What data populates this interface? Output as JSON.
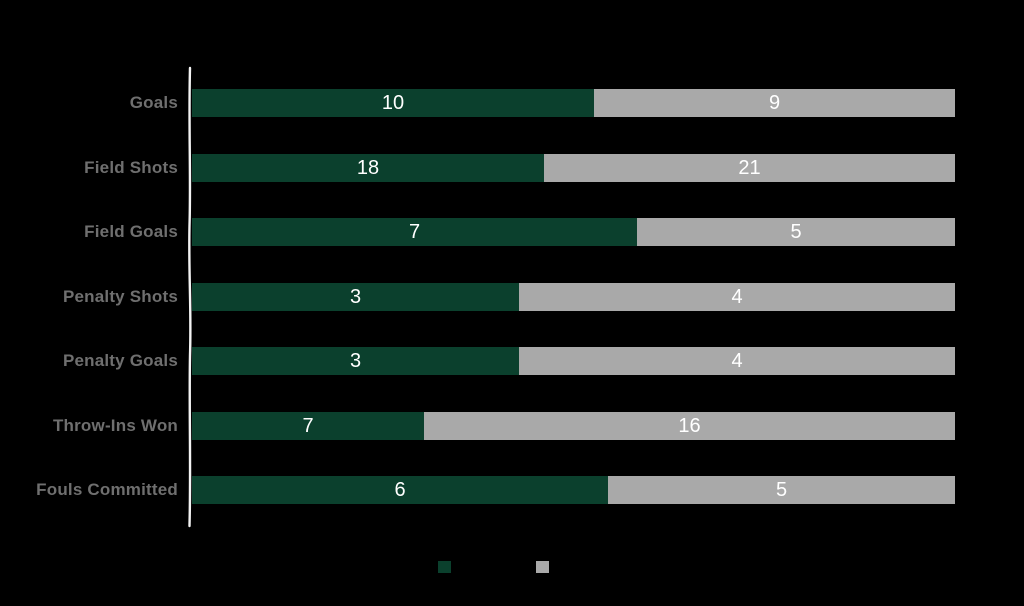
{
  "chart_data": {
    "type": "bar",
    "orientation": "horizontal",
    "stacking": "percent",
    "title": "",
    "xlabel": "",
    "ylabel": "",
    "grid": false,
    "legend_position": "bottom-center",
    "categories": [
      "Goals",
      "Field Shots",
      "Field Goals",
      "Penalty Shots",
      "Penalty Goals",
      "Throw-Ins Won",
      "Fouls Committed"
    ],
    "series": [
      {
        "name": "",
        "color": "#0b402d",
        "values": [
          10,
          18,
          7,
          3,
          3,
          7,
          6
        ]
      },
      {
        "name": "",
        "color": "#a9a9a9",
        "values": [
          9,
          21,
          5,
          4,
          4,
          16,
          5
        ]
      }
    ],
    "value_labels_shown": true
  },
  "legend": {
    "items": [
      {
        "label": "",
        "color": "#0b402d"
      },
      {
        "label": "",
        "color": "#a9a9a9"
      }
    ]
  },
  "style": {
    "background": "#000000",
    "axis_line_color": "#f3f3f3",
    "category_label_color": "#6f6f6f",
    "value_label_color": "#ffffff"
  }
}
